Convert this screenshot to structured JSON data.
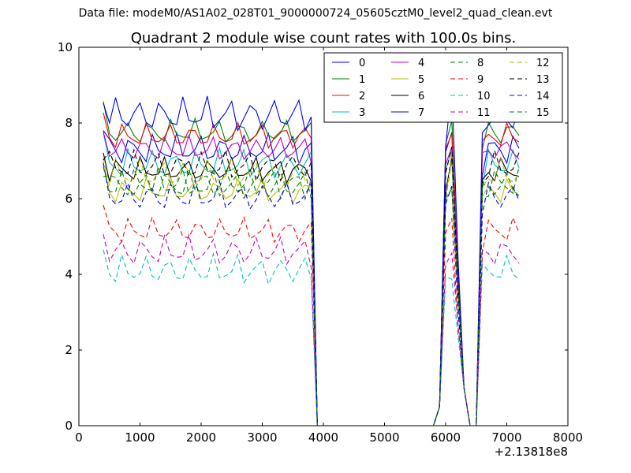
{
  "page": {
    "suptitle": "Data file: modeM0/AS1A02_028T01_9000000724_05605cztM0_level2_quad_clean.evt"
  },
  "chart_data": {
    "type": "line",
    "title": "Quadrant 2 module wise count rates with 100.0s bins.",
    "xlabel": "",
    "ylabel": "",
    "x_offset_label": "+2.13818e8",
    "xlim": [
      0,
      8000
    ],
    "ylim": [
      0,
      10
    ],
    "xticks": [
      "0",
      "1000",
      "2000",
      "3000",
      "4000",
      "5000",
      "6000",
      "7000",
      "8000"
    ],
    "yticks": [
      "0",
      "2",
      "4",
      "6",
      "8",
      "10"
    ],
    "legend_position": "top-right",
    "legend_columns": 4,
    "grid": false,
    "x": [
      400,
      500,
      600,
      700,
      800,
      900,
      1000,
      1100,
      1200,
      1300,
      1400,
      1500,
      1600,
      1700,
      1800,
      1900,
      2000,
      2100,
      2200,
      2300,
      2400,
      2500,
      2600,
      2700,
      2800,
      2900,
      3000,
      3100,
      3200,
      3300,
      3400,
      3500,
      3600,
      3700,
      3800,
      3900,
      4000,
      4100,
      4200,
      4300,
      4400,
      4500,
      4600,
      4700,
      4800,
      4900,
      5000,
      5100,
      5200,
      5300,
      5400,
      5500,
      5600,
      5700,
      5800,
      5900,
      6000,
      6100,
      6200,
      6300,
      6400,
      6500,
      6600,
      6700,
      6800,
      6900,
      7000,
      7100,
      7200
    ],
    "series": [
      {
        "name": "0",
        "color": "#0000ff",
        "dash": false,
        "base": 7.3,
        "amp": 0.3,
        "ph": 0.0
      },
      {
        "name": "1",
        "color": "#008000",
        "dash": false,
        "base": 7.75,
        "amp": 0.25,
        "ph": 1.3
      },
      {
        "name": "2",
        "color": "#ff0000",
        "dash": false,
        "base": 7.65,
        "amp": 0.25,
        "ph": 2.1
      },
      {
        "name": "3",
        "color": "#00bfbf",
        "dash": false,
        "base": 6.9,
        "amp": 0.3,
        "ph": 0.7
      },
      {
        "name": "4",
        "color": "#bf00bf",
        "dash": false,
        "base": 7.3,
        "amp": 0.25,
        "ph": 2.9
      },
      {
        "name": "5",
        "color": "#bfbf00",
        "dash": false,
        "base": 6.2,
        "amp": 0.25,
        "ph": 1.8
      },
      {
        "name": "6",
        "color": "#000000",
        "dash": false,
        "base": 6.75,
        "amp": 0.25,
        "ph": 3.6
      },
      {
        "name": "7",
        "color": "#0000ff",
        "dash": false,
        "base": 8.2,
        "amp": 0.35,
        "ph": 4.4
      },
      {
        "name": "8",
        "color": "#008000",
        "dash": true,
        "base": 6.4,
        "amp": 0.3,
        "ph": 5.1
      },
      {
        "name": "9",
        "color": "#ff0000",
        "dash": true,
        "base": 5.15,
        "amp": 0.25,
        "ph": 0.4
      },
      {
        "name": "10",
        "color": "#00bfbf",
        "dash": true,
        "base": 4.1,
        "amp": 0.3,
        "ph": 2.4
      },
      {
        "name": "11",
        "color": "#bf00bf",
        "dash": true,
        "base": 4.6,
        "amp": 0.3,
        "ph": 3.1
      },
      {
        "name": "12",
        "color": "#bfbf00",
        "dash": true,
        "base": 6.65,
        "amp": 0.3,
        "ph": 4.0
      },
      {
        "name": "13",
        "color": "#000000",
        "dash": true,
        "base": 6.85,
        "amp": 0.3,
        "ph": 5.6
      },
      {
        "name": "14",
        "color": "#0000ff",
        "dash": true,
        "base": 6.05,
        "amp": 0.3,
        "ph": 1.1
      },
      {
        "name": "15",
        "color": "#008000",
        "dash": true,
        "base": 6.35,
        "amp": 0.3,
        "ph": 2.7
      }
    ]
  }
}
